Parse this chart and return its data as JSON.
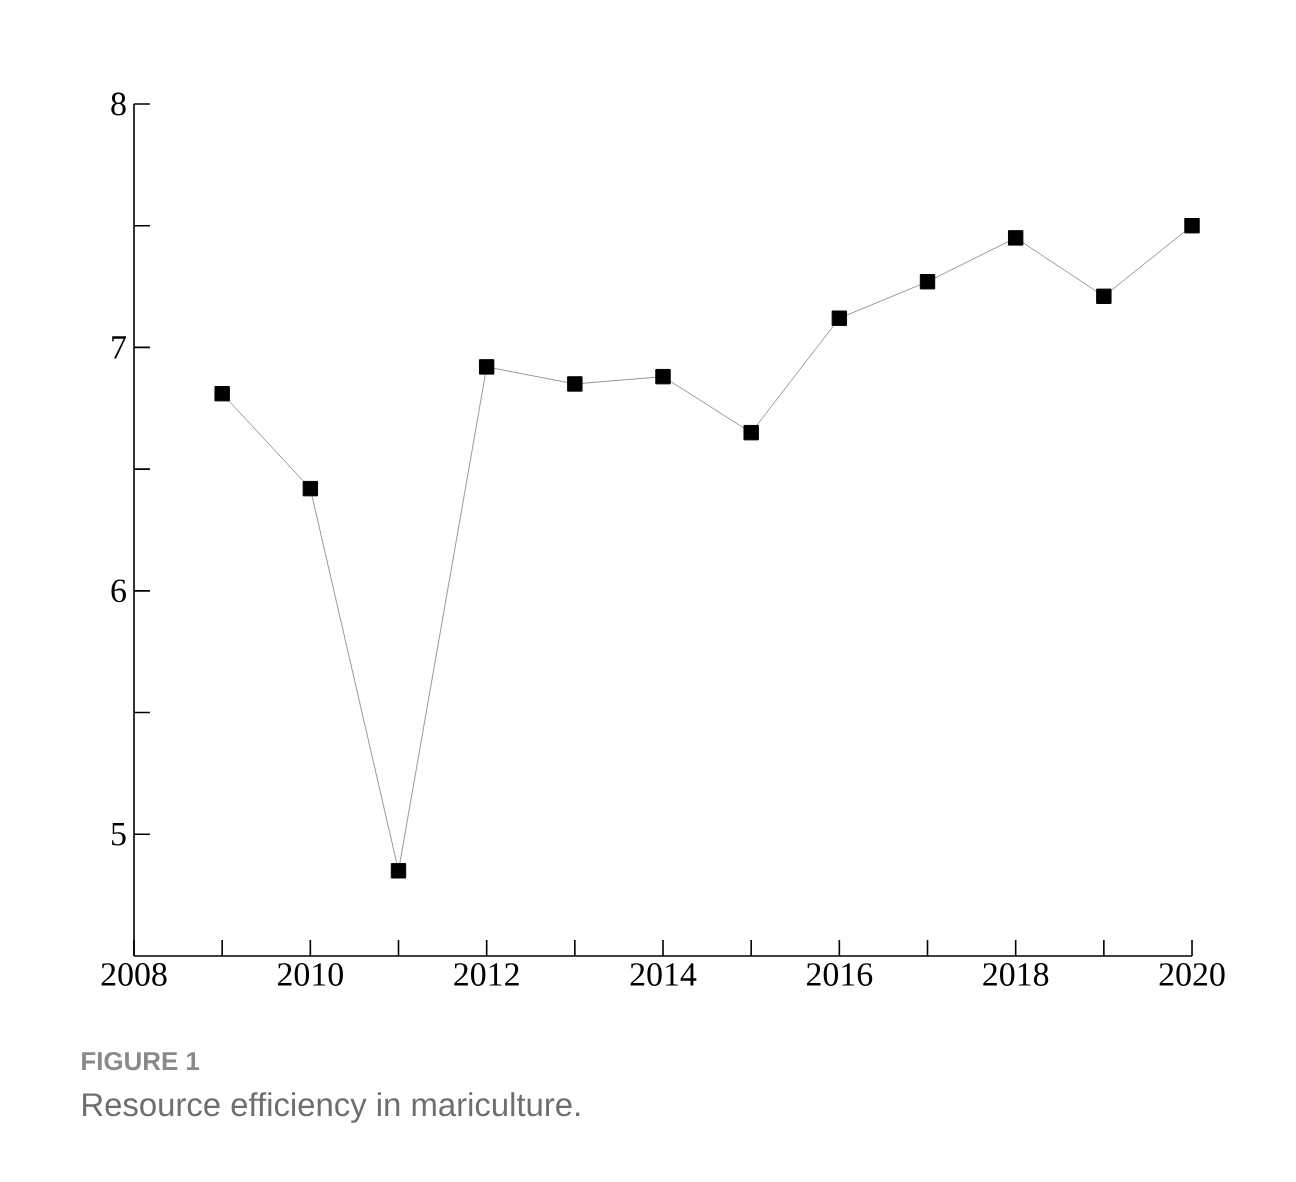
{
  "chart_data": {
    "type": "line",
    "x": [
      2009,
      2010,
      2011,
      2012,
      2013,
      2014,
      2015,
      2016,
      2017,
      2018,
      2019,
      2020
    ],
    "series": [
      {
        "color": "#000000",
        "values": [
          6.81,
          6.42,
          4.85,
          6.92,
          6.85,
          6.88,
          6.65,
          7.12,
          7.27,
          7.45,
          7.21,
          7.5
        ]
      }
    ],
    "marker": "square",
    "xlim": [
      2008,
      2020
    ],
    "xticks": [
      2008,
      {
        "value": 2009,
        "label": null
      },
      2010,
      {
        "value": 2011,
        "label": null
      },
      2012,
      {
        "value": 2013,
        "label": null
      },
      2014,
      {
        "value": 2015,
        "label": null
      },
      2016,
      {
        "value": 2017,
        "label": null
      },
      2018,
      {
        "value": 2019,
        "label": null
      },
      2020
    ],
    "ylim": [
      4.5,
      8
    ],
    "yticks": [
      5,
      {
        "value": 5.5,
        "label": null
      },
      6,
      {
        "value": 6.5,
        "label": null
      },
      7,
      {
        "value": 7.5,
        "label": null
      },
      8
    ],
    "annotations": [
      "FIGURE 1",
      "Resource efficiency in mariculture."
    ]
  }
}
